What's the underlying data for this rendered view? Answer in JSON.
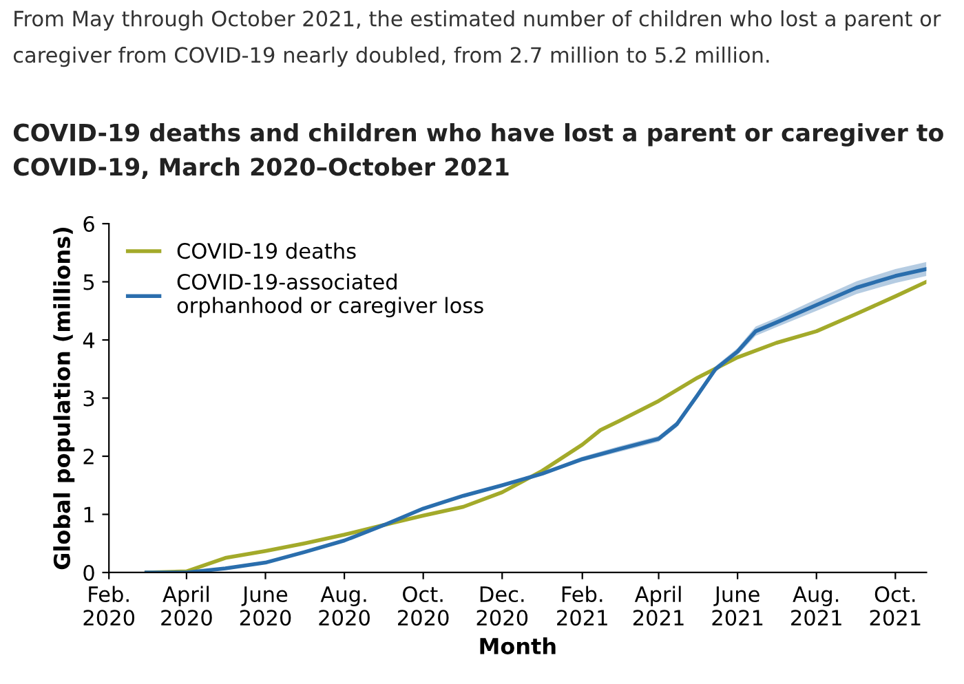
{
  "chart_data": {
    "type": "line",
    "title": "COVID-19 deaths and children who have lost a parent or caregiver to COVID-19, March 2020–October 2021",
    "annotations": [
      "From May through October 2021, the estimated number of children who lost a parent or caregiver from COVID-19 nearly doubled, from 2.7 million to 5.2 million."
    ],
    "xlabel": "Month",
    "ylabel": "Global population (millions)",
    "series": [
      {
        "name": "COVID-19 deaths",
        "color": "#a3aa2a",
        "x": [
          "2020-03-01",
          "2020-04-01",
          "2020-05-01",
          "2020-06-01",
          "2020-07-01",
          "2020-08-01",
          "2020-09-01",
          "2020-10-01",
          "2020-11-01",
          "2020-12-01",
          "2021-01-01",
          "2021-02-01",
          "2021-02-15",
          "2021-03-01",
          "2021-04-01",
          "2021-05-01",
          "2021-06-01",
          "2021-07-01",
          "2021-08-01",
          "2021-09-01",
          "2021-10-01",
          "2021-10-25"
        ],
        "values": [
          0,
          0.02,
          0.25,
          0.37,
          0.5,
          0.65,
          0.82,
          0.98,
          1.13,
          1.38,
          1.75,
          2.2,
          2.45,
          2.6,
          2.95,
          3.35,
          3.7,
          3.95,
          4.15,
          4.45,
          4.75,
          5.0
        ]
      },
      {
        "name": "COVID-19-associated\norphanhood or caregiver loss",
        "color": "#2a6ead",
        "x": [
          "2020-03-01",
          "2020-04-01",
          "2020-05-01",
          "2020-06-01",
          "2020-07-01",
          "2020-08-01",
          "2020-09-01",
          "2020-10-01",
          "2020-11-01",
          "2020-12-01",
          "2021-01-01",
          "2021-02-01",
          "2021-03-01",
          "2021-04-01",
          "2021-04-15",
          "2021-05-01",
          "2021-05-15",
          "2021-06-01",
          "2021-06-15",
          "2021-07-01",
          "2021-08-01",
          "2021-09-01",
          "2021-10-01",
          "2021-10-25"
        ],
        "values": [
          0,
          0,
          0.07,
          0.17,
          0.35,
          0.55,
          0.82,
          1.1,
          1.32,
          1.5,
          1.7,
          1.95,
          2.12,
          2.3,
          2.55,
          3.05,
          3.5,
          3.8,
          4.15,
          4.3,
          4.6,
          4.9,
          5.1,
          5.22
        ],
        "lower": [
          0,
          0,
          0.06,
          0.16,
          0.34,
          0.54,
          0.81,
          1.09,
          1.3,
          1.48,
          1.68,
          1.91,
          2.07,
          2.25,
          2.5,
          3.0,
          3.45,
          3.74,
          4.07,
          4.22,
          4.5,
          4.79,
          4.98,
          5.1
        ],
        "upper": [
          0,
          0,
          0.08,
          0.18,
          0.36,
          0.56,
          0.83,
          1.11,
          1.34,
          1.52,
          1.72,
          1.99,
          2.17,
          2.35,
          2.6,
          3.1,
          3.55,
          3.86,
          4.23,
          4.38,
          4.7,
          5.01,
          5.22,
          5.34
        ]
      }
    ],
    "xlim": [
      "2020-02-01",
      "2021-10-25"
    ],
    "xticks": [
      {
        "value": "2020-02-01",
        "label": "Feb.\n2020"
      },
      {
        "value": "2020-04-01",
        "label": "April\n2020"
      },
      {
        "value": "2020-06-01",
        "label": "June\n2020"
      },
      {
        "value": "2020-08-01",
        "label": "Aug.\n2020"
      },
      {
        "value": "2020-10-01",
        "label": "Oct.\n2020"
      },
      {
        "value": "2020-12-01",
        "label": "Dec.\n2020"
      },
      {
        "value": "2021-02-01",
        "label": "Feb.\n2021"
      },
      {
        "value": "2021-04-01",
        "label": "April\n2021"
      },
      {
        "value": "2021-06-01",
        "label": "June\n2021"
      },
      {
        "value": "2021-08-01",
        "label": "Aug.\n2021"
      },
      {
        "value": "2021-10-01",
        "label": "Oct.\n2021"
      }
    ],
    "ylim": [
      0,
      6
    ],
    "yticks": [
      0,
      1,
      2,
      3,
      4,
      5,
      6
    ],
    "grid": false,
    "legend": "top left",
    "marker": "none",
    "line_style": "solid"
  }
}
